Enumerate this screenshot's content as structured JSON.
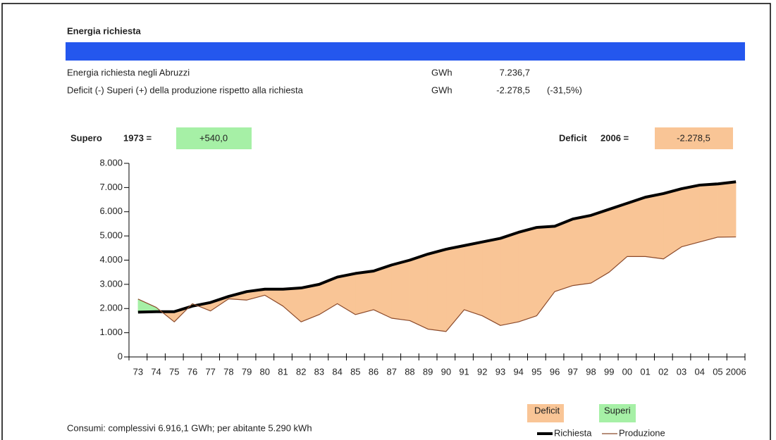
{
  "header": {
    "title": "Energia richiesta",
    "rows": [
      [
        "Energia richiesta negli Abruzzi",
        "GWh",
        "7.236,7"
      ],
      [
        "Deficit (-) Superi (+) della produzione rispetto alla richiesta",
        "GWh",
        "-2.278,5",
        "(-31,5%)"
      ]
    ]
  },
  "highlights": {
    "supero": {
      "label": "Supero",
      "year": "1973 =",
      "value": "+540,0"
    },
    "deficit": {
      "label": "Deficit",
      "year": "2006 =",
      "value": "-2.278,5"
    }
  },
  "chart_data": {
    "type": "line",
    "categories": [
      "73",
      "74",
      "75",
      "76",
      "77",
      "78",
      "79",
      "80",
      "81",
      "82",
      "83",
      "84",
      "85",
      "86",
      "87",
      "88",
      "89",
      "90",
      "91",
      "92",
      "93",
      "94",
      "95",
      "96",
      "97",
      "98",
      "99",
      "00",
      "01",
      "02",
      "03",
      "04",
      "05",
      "2006"
    ],
    "series": [
      {
        "name": "Richiesta",
        "color": "#000000",
        "values": [
          1850,
          1870,
          1870,
          2100,
          2250,
          2500,
          2700,
          2800,
          2800,
          2850,
          3000,
          3300,
          3450,
          3550,
          3800,
          4000,
          4250,
          4450,
          4600,
          4750,
          4900,
          5150,
          5350,
          5400,
          5700,
          5850,
          6100,
          6350,
          6600,
          6750,
          6950,
          7100,
          7150,
          7236.7
        ]
      },
      {
        "name": "Produzione",
        "color": "#8b4a2b",
        "values": [
          2390,
          2050,
          1450,
          2200,
          1900,
          2400,
          2350,
          2550,
          2100,
          1450,
          1750,
          2200,
          1750,
          1950,
          1600,
          1500,
          1150,
          1050,
          1950,
          1700,
          1300,
          1450,
          1700,
          2700,
          2950,
          3050,
          3500,
          4150,
          4150,
          4050,
          4550,
          4750,
          4950,
          4958.2
        ]
      }
    ],
    "fills": [
      {
        "name": "Deficit",
        "color": "#f9c596"
      },
      {
        "name": "Superi",
        "color": "#a6f0a6"
      }
    ],
    "ylim": [
      0,
      8000
    ],
    "yticks": [
      0,
      {
        "value": 1000,
        "label": "1.000"
      },
      {
        "value": 2000,
        "label": "2.000"
      },
      {
        "value": 3000,
        "label": "3.000"
      },
      {
        "value": 4000,
        "label": "4.000"
      },
      {
        "value": 5000,
        "label": "5.000"
      },
      {
        "value": 6000,
        "label": "6.000"
      },
      {
        "value": 7000,
        "label": "7.000"
      },
      {
        "value": 8000,
        "label": "8.000"
      }
    ]
  },
  "footnote": "Consumi: complessivi 6.916,1 GWh; per abitante 5.290 kWh"
}
